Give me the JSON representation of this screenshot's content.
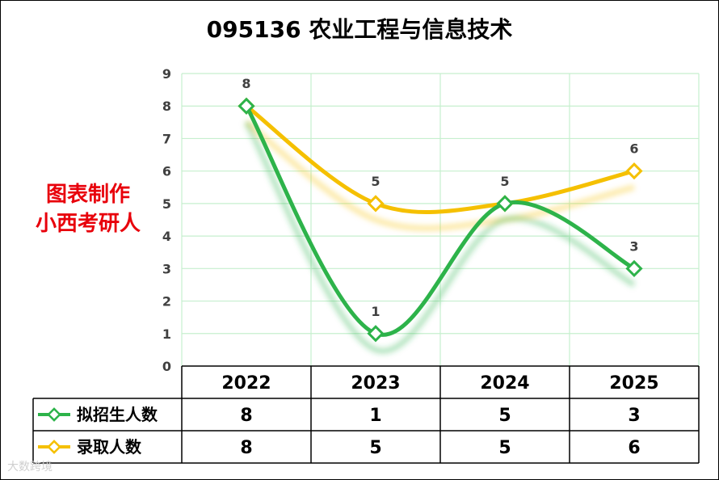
{
  "chart_data": {
    "type": "line",
    "title": "095136 农业工程与信息技术",
    "categories": [
      "2022",
      "2023",
      "2024",
      "2025"
    ],
    "series": [
      {
        "name": "拟招生人数",
        "values": [
          8,
          1,
          5,
          3
        ],
        "color": "#2db34a"
      },
      {
        "name": "录取人数",
        "values": [
          8,
          5,
          5,
          6
        ],
        "color": "#f5c000"
      }
    ],
    "ylim": [
      0,
      9
    ],
    "yticks": [
      "0",
      "1",
      "2",
      "3",
      "4",
      "5",
      "6",
      "7",
      "8",
      "9"
    ],
    "grid": true,
    "smooth": true,
    "data_table": true,
    "gridline_color": "#c6efce"
  },
  "annotation": {
    "line1": "图表制作",
    "line2": "小西考研人",
    "color": "#e8000b"
  },
  "watermark": "大数跨境"
}
